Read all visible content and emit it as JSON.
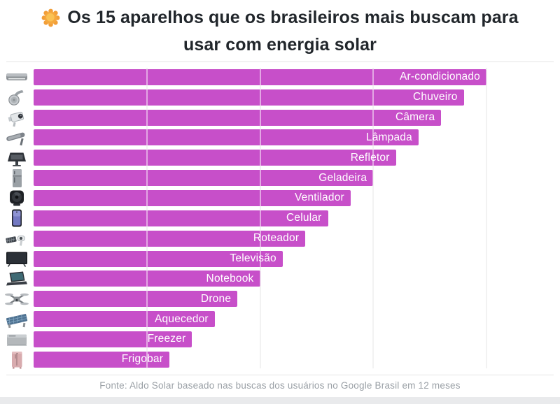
{
  "header": {
    "title_line1": "Os 15 aparelhos que os brasileiros mais buscam para",
    "title_line2": "usar com energia solar",
    "title_emoji": "sun"
  },
  "chart_data": {
    "type": "bar",
    "orientation": "horizontal",
    "title": "Os 15 aparelhos que os brasileiros mais buscam para usar com energia solar",
    "categories": [
      "Ar-condicionado",
      "Chuveiro",
      "Câmera",
      "Lâmpada",
      "Refletor",
      "Geladeira",
      "Ventilador",
      "Celular",
      "Roteador",
      "Televisão",
      "Notebook",
      "Drone",
      "Aquecedor",
      "Freezer",
      "Frigobar"
    ],
    "values": [
      100,
      95,
      90,
      85,
      80,
      75,
      70,
      65,
      60,
      55,
      50,
      45,
      40,
      35,
      30
    ],
    "value_unit": "relative bar length %, estimated from gridlines (no numeric labels shown)",
    "xlabel": "",
    "ylabel": "",
    "xlim": [
      0,
      100
    ],
    "xticks": [
      25,
      50,
      75,
      100
    ],
    "grid": true,
    "legend": false,
    "bar_color": "#C74FC9",
    "label_color": "#FFFFFF",
    "labels_inside_bars": true
  },
  "icons": [
    "air-conditioner-icon",
    "shower-icon",
    "security-camera-icon",
    "street-lamp-icon",
    "floodlight-icon",
    "refrigerator-icon",
    "fan-icon",
    "smartphone-icon",
    "solar-router-icon",
    "tv-icon",
    "laptop-icon",
    "drone-icon",
    "solar-heater-icon",
    "freezer-icon",
    "minibar-fridge-icon"
  ],
  "footer": {
    "source": "Fonte: Aldo Solar baseado nas buscas dos usuários no Google Brasil em 12 meses"
  },
  "colors": {
    "bar": "#C74FC9",
    "background": "#FFFFFF",
    "title_text": "#21262B",
    "footer_text": "#9AA0A6",
    "gridline": "#E4E4E4",
    "bottom_band": "#E9EAEC"
  }
}
